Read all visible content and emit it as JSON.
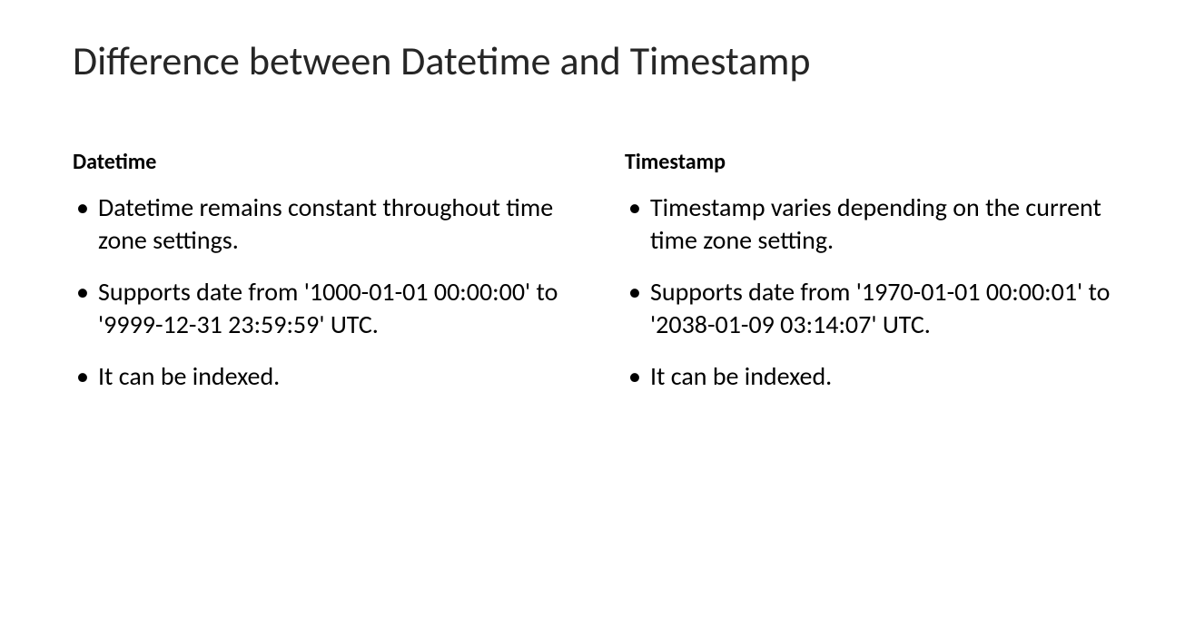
{
  "title": "Difference between Datetime and Timestamp",
  "left": {
    "heading": "Datetime",
    "bullets": [
      "Datetime remains constant throughout time zone settings.",
      "Supports date from '1000-01-01 00:00:00' to '9999-12-31 23:59:59' UTC.",
      "It can be indexed."
    ]
  },
  "right": {
    "heading": "Timestamp",
    "bullets": [
      "Timestamp varies depending on the current time zone setting.",
      "Supports date from '1970-01-01 00:00:01' to '2038-01-09 03:14:07' UTC.",
      "It can be indexed."
    ]
  },
  "styling": {
    "background_color": "#ffffff",
    "title_color": "#262626",
    "title_fontsize": 44,
    "heading_fontsize": 24,
    "heading_fontweight": 700,
    "body_fontsize": 28,
    "text_color": "#000000",
    "font_family": "Calibri"
  }
}
